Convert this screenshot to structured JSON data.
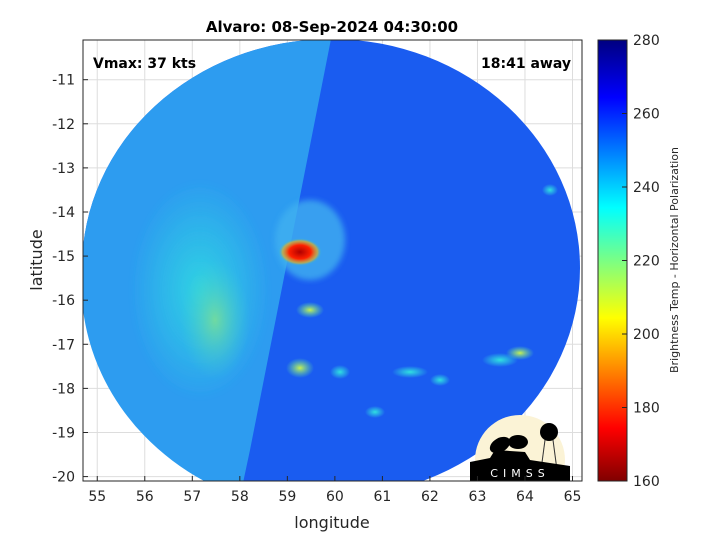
{
  "chart_data": {
    "type": "heatmap",
    "title": "Alvaro: 08-Sep-2024 04:30:00",
    "xlabel": "longitude",
    "ylabel": "latitude",
    "xlim": [
      54.7,
      65.2
    ],
    "ylim": [
      -20.1,
      -10.1
    ],
    "xticks": [
      "55",
      "56",
      "57",
      "58",
      "59",
      "60",
      "61",
      "62",
      "63",
      "64",
      "65"
    ],
    "yticks": [
      "-11",
      "-12",
      "-13",
      "-14",
      "-15",
      "-16",
      "-17",
      "-18",
      "-19",
      "-20"
    ],
    "grid": true,
    "annotations": {
      "vmax": "Vmax: 37 kts",
      "time_offset": "18:41 away"
    },
    "colorbar": {
      "label": "Brightness Temp - Horizontal Polarization",
      "range": [
        160,
        280
      ],
      "ticks": [
        "160",
        "180",
        "200",
        "220",
        "240",
        "260",
        "280"
      ],
      "colormap": "jet"
    },
    "features": {
      "warm_core_center": {
        "lon": 59.2,
        "lat": -15.0
      },
      "swath_coverage": "circular"
    }
  },
  "logo": {
    "text": "CIMSS"
  }
}
